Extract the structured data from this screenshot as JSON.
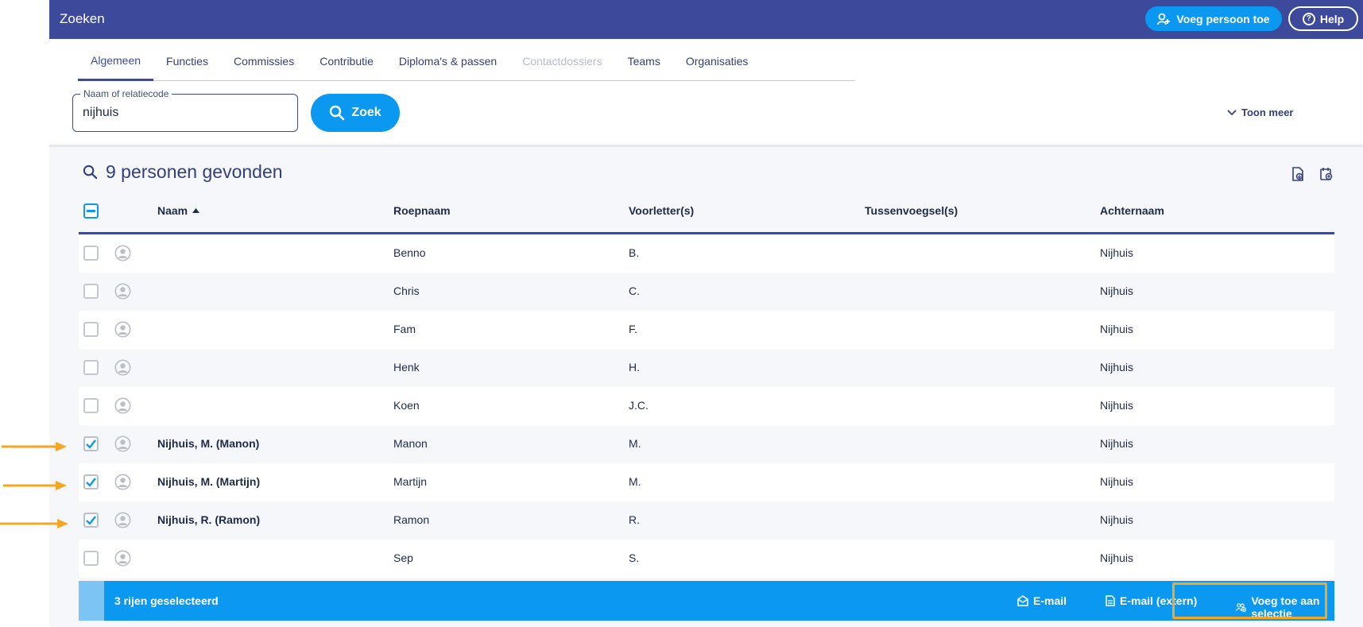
{
  "topbar": {
    "title": "Zoeken",
    "add_person_label": "Voeg persoon toe",
    "help_label": "Help"
  },
  "tabs": [
    {
      "label": "Algemeen",
      "state": "active"
    },
    {
      "label": "Functies",
      "state": "normal"
    },
    {
      "label": "Commissies",
      "state": "normal"
    },
    {
      "label": "Contributie",
      "state": "normal"
    },
    {
      "label": "Diploma's & passen",
      "state": "normal"
    },
    {
      "label": "Contactdossiers",
      "state": "disabled"
    },
    {
      "label": "Teams",
      "state": "normal"
    },
    {
      "label": "Organisaties",
      "state": "normal"
    }
  ],
  "search": {
    "legend": "Naam of relatiecode",
    "value": "nijhuis",
    "button_label": "Zoek",
    "toon_meer": "Toon meer"
  },
  "results": {
    "title": "9 personen gevonden"
  },
  "table": {
    "headers": {
      "naam": "Naam",
      "roepnaam": "Roepnaam",
      "voorletters": "Voorletter(s)",
      "tussenvoegsel": "Tussenvoegsel(s)",
      "achternaam": "Achternaam"
    },
    "rows": [
      {
        "checked": false,
        "naam": "",
        "roepnaam": "Benno",
        "voorletters": "B.",
        "tussenvoegsel": "",
        "achternaam": "Nijhuis"
      },
      {
        "checked": false,
        "naam": "",
        "roepnaam": "Chris",
        "voorletters": "C.",
        "tussenvoegsel": "",
        "achternaam": "Nijhuis"
      },
      {
        "checked": false,
        "naam": "",
        "roepnaam": "Fam",
        "voorletters": "F.",
        "tussenvoegsel": "",
        "achternaam": "Nijhuis"
      },
      {
        "checked": false,
        "naam": "",
        "roepnaam": "Henk",
        "voorletters": "H.",
        "tussenvoegsel": "",
        "achternaam": "Nijhuis"
      },
      {
        "checked": false,
        "naam": "",
        "roepnaam": "Koen",
        "voorletters": "J.C.",
        "tussenvoegsel": "",
        "achternaam": "Nijhuis"
      },
      {
        "checked": true,
        "naam": "Nijhuis, M. (Manon)",
        "roepnaam": "Manon",
        "voorletters": "M.",
        "tussenvoegsel": "",
        "achternaam": "Nijhuis"
      },
      {
        "checked": true,
        "naam": "Nijhuis, M. (Martijn)",
        "roepnaam": "Martijn",
        "voorletters": "M.",
        "tussenvoegsel": "",
        "achternaam": "Nijhuis"
      },
      {
        "checked": true,
        "naam": "Nijhuis, R. (Ramon)",
        "roepnaam": "Ramon",
        "voorletters": "R.",
        "tussenvoegsel": "",
        "achternaam": "Nijhuis"
      },
      {
        "checked": false,
        "naam": "",
        "roepnaam": "Sep",
        "voorletters": "S.",
        "tussenvoegsel": "",
        "achternaam": "Nijhuis"
      }
    ]
  },
  "footer": {
    "selected_text": "3 rijen geselecteerd",
    "email_label": "E-mail",
    "email_extern_label": "E-mail (extern)",
    "add_selection_label": "Voeg toe aan selectie"
  },
  "colors": {
    "brand": "#3d4a9b",
    "accent": "#0a98f0",
    "annotation": "#f5a623"
  }
}
